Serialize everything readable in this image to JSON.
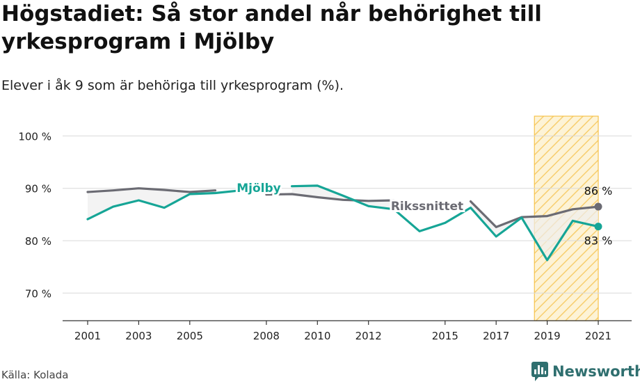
{
  "header": {
    "title": "Högstadiet: Så stor andel når behörighet till yrkesprogram i Mjölby",
    "subtitle": "Elever i åk 9 som är behöriga till yrkesprogram (%)."
  },
  "footer": {
    "source": "Källa: Kolada",
    "brand": "Newsworthy"
  },
  "colors": {
    "mjolby": "#16a596",
    "riket": "#6b6b73",
    "highlight": "#f6c24a",
    "grid": "#d9d9d9"
  },
  "chart_data": {
    "type": "line",
    "x": [
      2001,
      2002,
      2003,
      2004,
      2005,
      2006,
      2007,
      2008,
      2009,
      2010,
      2011,
      2012,
      2013,
      2014,
      2015,
      2016,
      2017,
      2018,
      2019,
      2020,
      2021
    ],
    "xticks": [
      {
        "value": 2001,
        "label": "2001"
      },
      {
        "value": 2003,
        "label": "2003"
      },
      {
        "value": 2005,
        "label": "2005"
      },
      {
        "value": 2008,
        "label": "2008"
      },
      {
        "value": 2010,
        "label": "2010"
      },
      {
        "value": 2012,
        "label": "2012"
      },
      {
        "value": 2015,
        "label": "2015"
      },
      {
        "value": 2017,
        "label": "2017"
      },
      {
        "value": 2019,
        "label": "2019"
      },
      {
        "value": 2021,
        "label": "2021"
      }
    ],
    "yticks": [
      {
        "value": 70,
        "label": "70 %"
      },
      {
        "value": 80,
        "label": "80 %"
      },
      {
        "value": 90,
        "label": "90 %"
      },
      {
        "value": 100,
        "label": "100 %"
      }
    ],
    "ylim": [
      65,
      103.5
    ],
    "xlim": [
      2000.0,
      2021.5
    ],
    "grid": true,
    "series": [
      {
        "name": "Mjölby",
        "key": "mjolby",
        "values": [
          84.1,
          86.5,
          87.7,
          86.3,
          88.9,
          89.1,
          89.6,
          null,
          90.4,
          90.5,
          88.6,
          86.6,
          86.0,
          81.8,
          83.4,
          86.3,
          80.8,
          84.4,
          76.3,
          83.8,
          82.7
        ],
        "end_label": "83 %"
      },
      {
        "name": "Rikssnittet",
        "key": "riket",
        "values": [
          89.3,
          89.6,
          90.0,
          89.7,
          89.3,
          89.6,
          null,
          88.8,
          88.9,
          88.3,
          87.8,
          87.6,
          87.7,
          null,
          null,
          87.5,
          82.6,
          84.5,
          84.7,
          86.0,
          86.5
        ],
        "end_label": "86 %"
      }
    ],
    "highlight_range": [
      2018.5,
      2021
    ]
  }
}
